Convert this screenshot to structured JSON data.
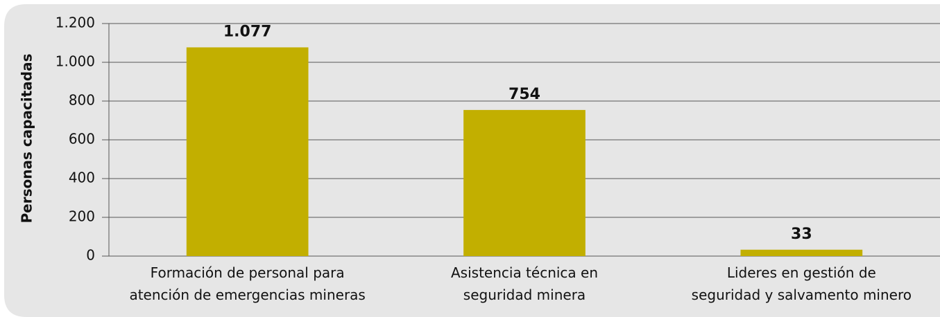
{
  "chart_data": {
    "type": "bar",
    "y_label": "Personas capacitadas",
    "categories": [
      "Formación de personal para\natención de emergencias mineras",
      "Asistencia técnica en\nseguridad minera",
      "Lideres en gestión de\nseguridad y salvamento minero"
    ],
    "values": [
      1077,
      754,
      33
    ],
    "value_labels": [
      "1.077",
      "754",
      "33"
    ],
    "color": "#c2af00",
    "ylim": [
      0,
      1200
    ],
    "yticks": [
      0,
      200,
      400,
      600,
      800,
      {
        "value": 1000,
        "label": "1.000"
      },
      {
        "value": 1200,
        "label": "1.200"
      }
    ],
    "grid": true
  }
}
